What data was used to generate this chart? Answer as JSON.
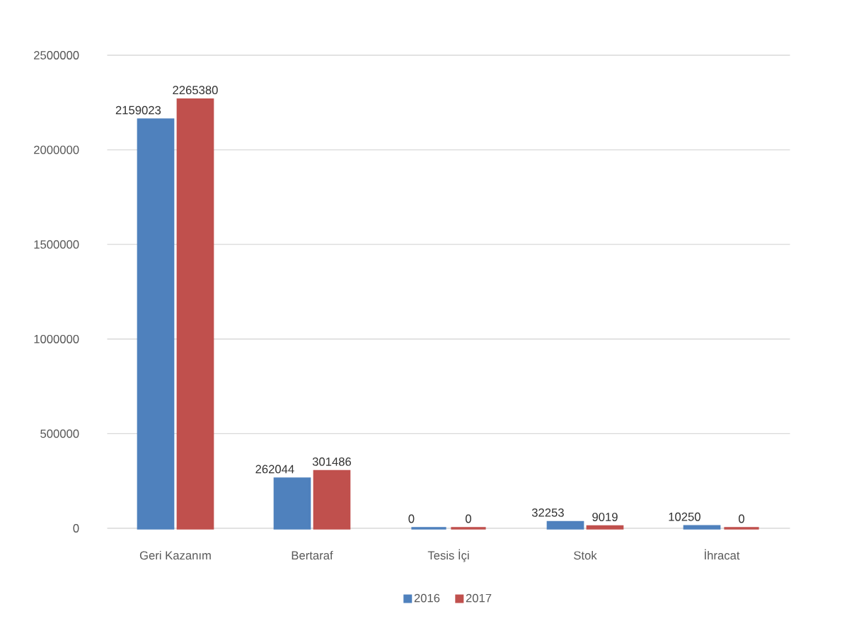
{
  "chart_data": {
    "type": "bar",
    "categories": [
      "Geri Kazanım",
      "Bertaraf",
      "Tesis İçi",
      "Stok",
      "İhracat"
    ],
    "series": [
      {
        "name": "2016",
        "color": "#4f81bd",
        "values": [
          2159023,
          262044,
          0,
          32253,
          10250
        ]
      },
      {
        "name": "2017",
        "color": "#c0504d",
        "values": [
          2265380,
          301486,
          0,
          9019,
          0
        ]
      }
    ],
    "ylim": [
      0,
      2500000
    ],
    "yticks": [
      0,
      500000,
      1000000,
      1500000,
      2000000,
      2500000
    ],
    "grid": "y",
    "legend": "bottom",
    "data_labels": true
  }
}
